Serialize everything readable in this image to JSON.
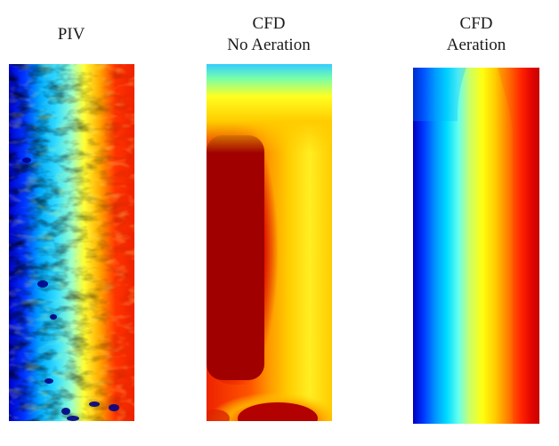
{
  "figure": {
    "panels": [
      {
        "id": "piv",
        "title": "PIV"
      },
      {
        "id": "cfd-no-aeration",
        "title": "CFD\nNo Aeration"
      },
      {
        "id": "cfd-aeration",
        "title": "CFD\nAeration"
      }
    ],
    "colormap": {
      "name": "jet",
      "colors": [
        "#00008b",
        "#0000ff",
        "#00a6ff",
        "#00ffff",
        "#7fff7f",
        "#ffff00",
        "#ffa500",
        "#ff0000",
        "#8b0000"
      ]
    }
  }
}
